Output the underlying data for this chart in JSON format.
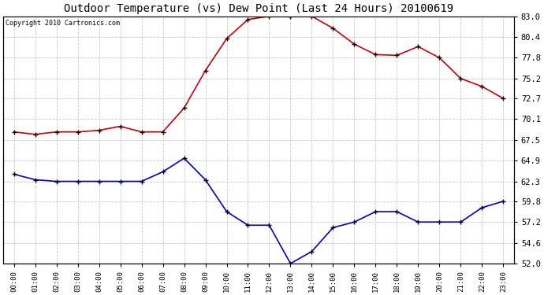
{
  "title": "Outdoor Temperature (vs) Dew Point (Last 24 Hours) 20100619",
  "copyright": "Copyright 2010 Cartronics.com",
  "hours": [
    "00:00",
    "01:00",
    "02:00",
    "03:00",
    "04:00",
    "05:00",
    "06:00",
    "07:00",
    "08:00",
    "09:00",
    "10:00",
    "11:00",
    "12:00",
    "13:00",
    "14:00",
    "15:00",
    "16:00",
    "17:00",
    "18:00",
    "19:00",
    "20:00",
    "21:00",
    "22:00",
    "23:00"
  ],
  "temp": [
    68.5,
    68.2,
    68.5,
    68.5,
    68.7,
    69.2,
    68.5,
    68.5,
    71.5,
    76.2,
    80.2,
    82.6,
    83.0,
    83.0,
    83.0,
    81.5,
    79.5,
    78.2,
    78.1,
    79.2,
    77.8,
    75.2,
    74.2,
    72.7
  ],
  "dew": [
    63.2,
    62.5,
    62.3,
    62.3,
    62.3,
    62.3,
    62.3,
    63.5,
    65.2,
    62.5,
    58.5,
    56.8,
    56.8,
    52.0,
    53.5,
    56.5,
    57.2,
    58.5,
    58.5,
    57.2,
    57.2,
    57.2,
    59.0,
    59.8
  ],
  "temp_color": "#cc0000",
  "dew_color": "#0000cc",
  "marker": "+",
  "marker_color": "#000000",
  "grid_color": "#c8c8c8",
  "grid_style": "--",
  "bg_color": "#ffffff",
  "plot_bg_color": "#ffffff",
  "title_fontsize": 10,
  "copyright_fontsize": 6,
  "ylim": [
    52.0,
    83.0
  ],
  "yticks": [
    52.0,
    54.6,
    57.2,
    59.8,
    62.3,
    64.9,
    67.5,
    70.1,
    72.7,
    75.2,
    77.8,
    80.4,
    83.0
  ],
  "line_width": 1.2,
  "marker_size": 4
}
